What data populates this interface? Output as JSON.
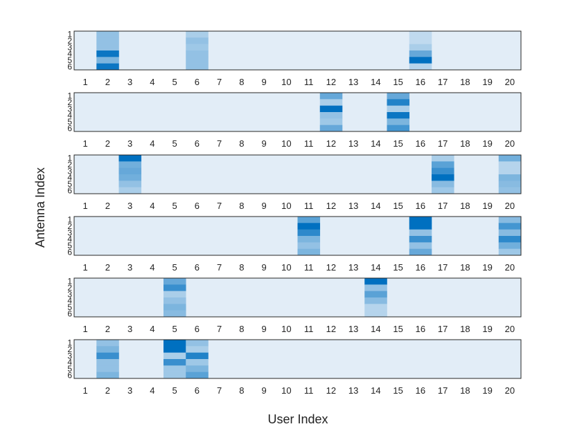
{
  "chart_data": {
    "type": "heatmap",
    "xlabel": "User Index",
    "ylabel": "Antenna Index",
    "x_ticks": [
      "1",
      "2",
      "3",
      "4",
      "5",
      "6",
      "7",
      "8",
      "9",
      "10",
      "11",
      "12",
      "13",
      "14",
      "15",
      "16",
      "17",
      "18",
      "19",
      "20"
    ],
    "y_ticks": [
      "1",
      "2",
      "3",
      "4",
      "5",
      "6"
    ],
    "color_low": "#e2edf7",
    "color_high": "#0070c0",
    "panels": [
      {
        "columns": [
          {
            "x": 2,
            "values": [
              0.35,
              0.35,
              0.35,
              0.95,
              0.45,
              0.95
            ]
          },
          {
            "x": 6,
            "values": [
              0.25,
              0.35,
              0.3,
              0.35,
              0.35,
              0.35
            ]
          },
          {
            "x": 16,
            "values": [
              0.15,
              0.15,
              0.25,
              0.55,
              1.0,
              0.2
            ]
          }
        ]
      },
      {
        "columns": [
          {
            "x": 12,
            "values": [
              0.55,
              0.25,
              1.0,
              0.35,
              0.3,
              0.55
            ]
          },
          {
            "x": 15,
            "values": [
              0.55,
              0.85,
              0.25,
              0.95,
              0.45,
              0.7
            ]
          }
        ]
      },
      {
        "columns": [
          {
            "x": 3,
            "values": [
              1.0,
              0.5,
              0.55,
              0.5,
              0.35,
              0.25
            ]
          },
          {
            "x": 17,
            "values": [
              0.25,
              0.6,
              0.75,
              1.0,
              0.4,
              0.3
            ]
          },
          {
            "x": 20,
            "values": [
              0.5,
              0.2,
              0.2,
              0.45,
              0.4,
              0.35
            ]
          }
        ]
      },
      {
        "columns": [
          {
            "x": 11,
            "values": [
              0.6,
              1.0,
              0.8,
              0.45,
              0.35,
              0.45
            ]
          },
          {
            "x": 16,
            "values": [
              1.0,
              1.0,
              0.35,
              0.75,
              0.35,
              0.55
            ]
          },
          {
            "x": 20,
            "values": [
              0.4,
              0.7,
              0.4,
              0.8,
              0.5,
              0.3
            ]
          }
        ]
      },
      {
        "columns": [
          {
            "x": 5,
            "values": [
              0.55,
              0.75,
              0.25,
              0.35,
              0.45,
              0.4
            ]
          },
          {
            "x": 14,
            "values": [
              1.0,
              0.35,
              0.6,
              0.4,
              0.2,
              0.2
            ]
          }
        ]
      },
      {
        "columns": [
          {
            "x": 2,
            "values": [
              0.35,
              0.45,
              0.75,
              0.35,
              0.35,
              0.45
            ]
          },
          {
            "x": 5,
            "values": [
              1.0,
              1.0,
              0.25,
              0.75,
              0.3,
              0.3
            ]
          },
          {
            "x": 6,
            "values": [
              0.35,
              0.25,
              0.85,
              0.3,
              0.45,
              0.6
            ]
          }
        ]
      }
    ]
  }
}
